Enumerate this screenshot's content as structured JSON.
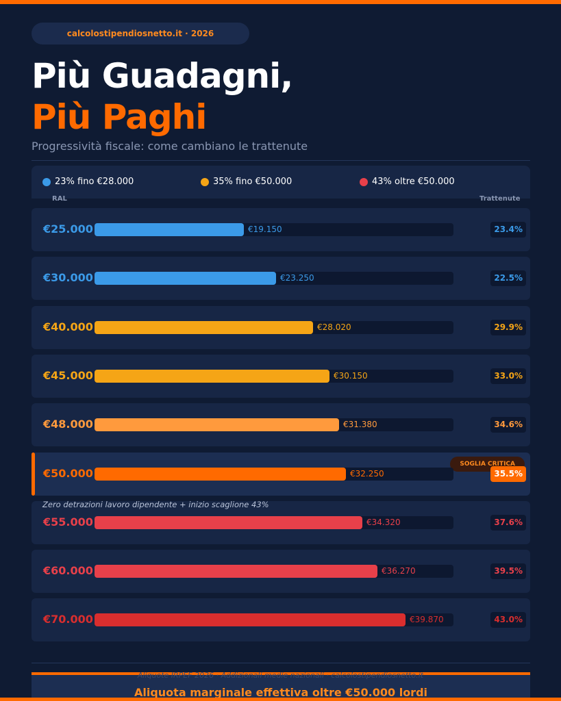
{
  "header": {
    "site": "calcolostipendiosnetto.it · 2026",
    "title_line1": "Più Guadagni,",
    "title_line2": "Più Paghi",
    "subtitle": "Progressività fiscale: come cambiano le trattenute"
  },
  "legend": [
    {
      "label": "23% fino €28.000",
      "color": "#3b9ae8"
    },
    {
      "label": "35% fino €50.000",
      "color": "#f5a516"
    },
    {
      "label": "43% oltre €50.000",
      "color": "#e8404a"
    }
  ],
  "columns": {
    "ral": "RAL",
    "trattenute": "Trattenute"
  },
  "chart_data": {
    "type": "bar",
    "orientation": "horizontal",
    "categories": [
      "€25.000",
      "€30.000",
      "€40.000",
      "€45.000",
      "€48.000",
      "€50.000",
      "€55.000",
      "€60.000",
      "€70.000"
    ],
    "ral_values": [
      25000,
      30000,
      40000,
      45000,
      48000,
      50000,
      55000,
      60000,
      70000
    ],
    "net_values": [
      19150,
      23250,
      28020,
      30150,
      31380,
      32250,
      34320,
      36270,
      39870
    ],
    "net_labels": [
      "€19.150",
      "€23.250",
      "€28.020",
      "€30.150",
      "€31.380",
      "€32.250",
      "€34.320",
      "€36.270",
      "€39.870"
    ],
    "trattenute_pct": [
      "23.4%",
      "22.5%",
      "29.9%",
      "33.0%",
      "34.6%",
      "35.5%",
      "37.6%",
      "39.5%",
      "43.0%"
    ],
    "colors": [
      "#3b9ae8",
      "#3b9ae8",
      "#f5a516",
      "#f5a516",
      "#ff9a3d",
      "#ff6a00",
      "#e8404a",
      "#e8404a",
      "#d92e2e"
    ],
    "text_colors": [
      "#3b9ae8",
      "#3b9ae8",
      "#f5a516",
      "#f5a516",
      "#ff9a3d",
      "#ff6a00",
      "#e8404a",
      "#e8404a",
      "#d92e2e"
    ],
    "highlight_index": 5,
    "highlight_label": "SOGLIA CRITICA"
  },
  "note": "Zero detrazioni lavoro dipendente + inizio scaglione 43%",
  "footer": {
    "source": "Aliquote IRPEF 2026 · Addizionali medie nazionali · calcolostipendiosnetto.it",
    "banner": "Aliquota marginale effettiva oltre €50.000 lordi"
  }
}
